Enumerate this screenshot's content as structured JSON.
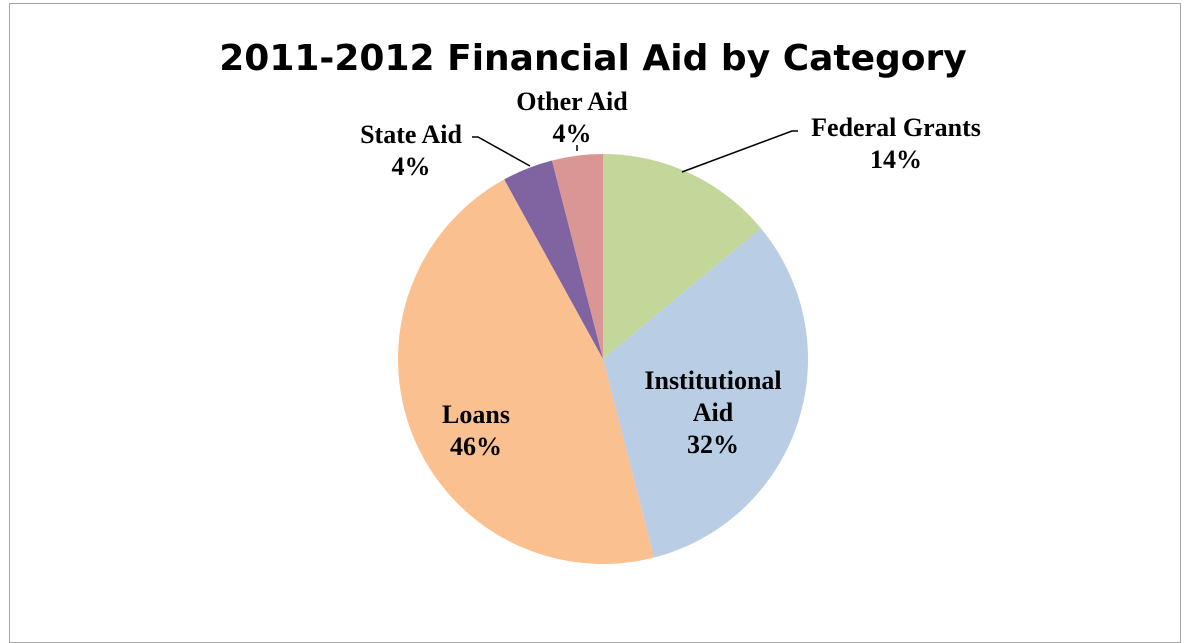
{
  "chart_data": {
    "type": "pie",
    "title": "2011-2012 Financial Aid by Category",
    "slices": [
      {
        "label": "Federal Grants",
        "value": 14,
        "value_label": "14%",
        "color": "#c4d79b"
      },
      {
        "label": "Institutional Aid",
        "label_lines": [
          "Institutional",
          "Aid"
        ],
        "value": 32,
        "value_label": "32%",
        "color": "#b9cde5"
      },
      {
        "label": "Loans",
        "value": 46,
        "value_label": "46%",
        "color": "#fac090"
      },
      {
        "label": "State Aid",
        "value": 4,
        "value_label": "4%",
        "color": "#8064a2"
      },
      {
        "label": "Other Aid",
        "value": 4,
        "value_label": "4%",
        "color": "#d99694"
      }
    ],
    "start_angle": "12 o'clock",
    "direction": "clockwise",
    "legend": "none"
  }
}
